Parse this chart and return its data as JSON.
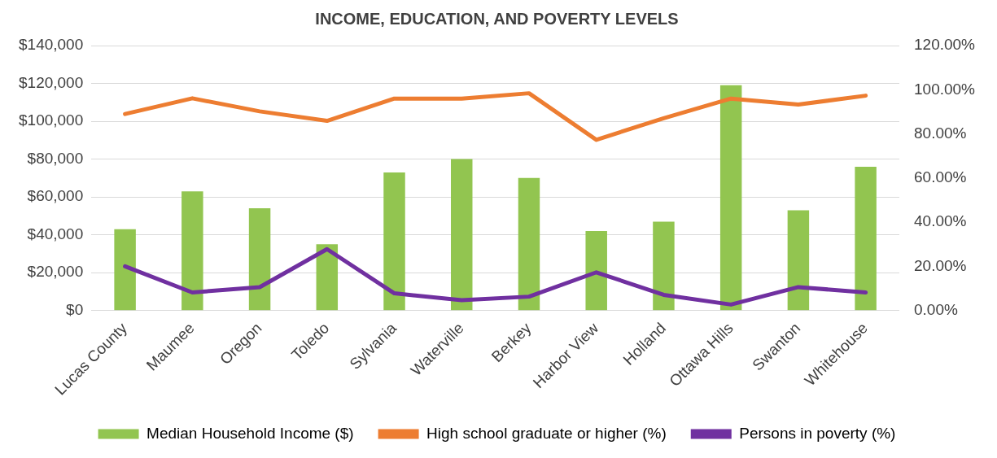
{
  "chart_data": {
    "type": "bar",
    "title": "INCOME, EDUCATION, AND POVERTY LEVELS",
    "categories": [
      "Lucas County",
      "Maumee",
      "Oregon",
      "Toledo",
      "Sylvania",
      "Waterville",
      "Berkey",
      "Harbor View",
      "Holland",
      "Ottawa Hills",
      "Swanton",
      "Whitehouse"
    ],
    "series": [
      {
        "name": "Median Household Income ($)",
        "color": "#92c550",
        "values": [
          43000,
          63000,
          54000,
          35000,
          73000,
          80000,
          70000,
          42000,
          47000,
          119000,
          53000,
          76000
        ]
      },
      {
        "name": "High school graduate or higher (%)",
        "type": "line",
        "axis": "y2",
        "color": "#ed7d31",
        "values": [
          89.0,
          96.1,
          90.2,
          85.9,
          96.0,
          96.0,
          98.4,
          77.3,
          87.1,
          96.0,
          93.3,
          97.3
        ]
      },
      {
        "name": "Persons in poverty (%)",
        "type": "line",
        "axis": "y2",
        "color": "#7030a0",
        "values": [
          20.0,
          8.2,
          10.6,
          27.8,
          7.8,
          4.7,
          6.3,
          17.3,
          7.1,
          2.7,
          10.6,
          8.2
        ]
      }
    ],
    "ylim": [
      0,
      140000
    ],
    "yticks": [
      {
        "value": 0,
        "label": "$0"
      },
      {
        "value": 20000,
        "label": "$20,000"
      },
      {
        "value": 40000,
        "label": "$40,000"
      },
      {
        "value": 60000,
        "label": "$60,000"
      },
      {
        "value": 80000,
        "label": "$80,000"
      },
      {
        "value": 100000,
        "label": "$100,000"
      },
      {
        "value": 120000,
        "label": "$120,000"
      },
      {
        "value": 140000,
        "label": "$140,000"
      }
    ],
    "y2lim": [
      0,
      120
    ],
    "y2ticks": [
      {
        "value": 0,
        "label": "0.00%"
      },
      {
        "value": 20,
        "label": "20.00%"
      },
      {
        "value": 40,
        "label": "40.00%"
      },
      {
        "value": 60,
        "label": "60.00%"
      },
      {
        "value": 80,
        "label": "80.00%"
      },
      {
        "value": 100,
        "label": "100.00%"
      },
      {
        "value": 120,
        "label": "120.00%"
      }
    ],
    "grid": "y",
    "legend": "bottom",
    "marker": "none"
  }
}
